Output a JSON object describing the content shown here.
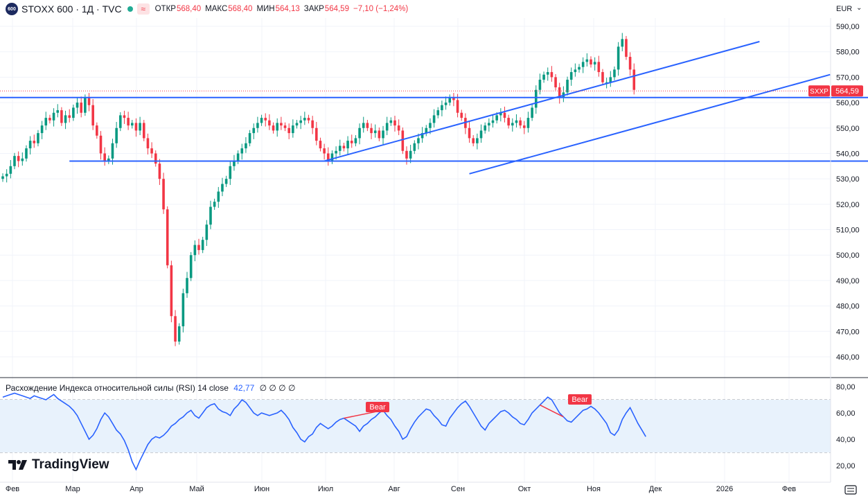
{
  "header": {
    "logo_text": "600",
    "symbol": "STOXX 600 · 1Д · TVC",
    "open_label": "ОТКР",
    "open_value": "568,40",
    "high_label": "МАКС",
    "high_value": "568,40",
    "low_label": "МИН",
    "low_value": "564,13",
    "close_label": "ЗАКР",
    "close_value": "564,59",
    "change_value": "−7,10 (−1,24%)",
    "status_icon": "live-dot-icon",
    "wave_icon": "wave-icon",
    "wave_glyph": "≈"
  },
  "currency": "EUR",
  "currency_arrow": "⌄",
  "price_axis": {
    "ticks": [
      "590,00",
      "580,00",
      "570,00",
      "560,00",
      "550,00",
      "540,00",
      "530,00",
      "520,00",
      "510,00",
      "500,00",
      "490,00",
      "480,00",
      "470,00",
      "460,00"
    ],
    "last_symbol": "SXXP",
    "last_price": "564,59"
  },
  "rsi": {
    "title": "Расхождение Индекса относительной силы (RSI)",
    "params": "14 close",
    "value": "42,77",
    "placeholders": "∅ ∅ ∅ ∅",
    "ticks": [
      "80,00",
      "60,00",
      "40,00",
      "20,00"
    ],
    "bear_labels": [
      "Bear",
      "Bear"
    ]
  },
  "time_axis": [
    "Фев",
    "Мар",
    "Апр",
    "Май",
    "Июн",
    "Июл",
    "Авг",
    "Сен",
    "Окт",
    "Ноя",
    "Дек",
    "2026",
    "Фев"
  ],
  "brand": "TradingView",
  "colors": {
    "up": "#089981",
    "down": "#f23645",
    "line": "#2962ff",
    "rsi_band": "#e8f2fc"
  },
  "chart_data": [
    {
      "type": "candlestick",
      "title": "STOXX 600 · 1Д · TVC",
      "ylabel": "EUR",
      "ylim": [
        455,
        593
      ],
      "ohlc_last": {
        "open": 568.4,
        "high": 568.4,
        "low": 564.13,
        "close": 564.59,
        "change": -7.1,
        "change_pct": -1.24
      },
      "closes": [
        531,
        532,
        535,
        539,
        537,
        538,
        542,
        545,
        544,
        548,
        551,
        554,
        553,
        556,
        557,
        552,
        555,
        554,
        558,
        560,
        556,
        562,
        559,
        551,
        547,
        540,
        537,
        538,
        544,
        550,
        555,
        554,
        551,
        552,
        549,
        552,
        546,
        542,
        540,
        536,
        530,
        518,
        496,
        476,
        466,
        472,
        485,
        491,
        500,
        504,
        502,
        506,
        512,
        519,
        521,
        525,
        528,
        530,
        535,
        537,
        540,
        542,
        544,
        548,
        550,
        552,
        554,
        553,
        551,
        549,
        552,
        551,
        550,
        548,
        551,
        552,
        553,
        554,
        553,
        550,
        545,
        542,
        540,
        537,
        540,
        541,
        543,
        542,
        545,
        544,
        546,
        550,
        552,
        550,
        548,
        549,
        546,
        549,
        552,
        553,
        551,
        549,
        541,
        538,
        541,
        544,
        546,
        548,
        550,
        552,
        555,
        557,
        559,
        560,
        562,
        561,
        556,
        554,
        550,
        546,
        544,
        546,
        549,
        551,
        552,
        553,
        555,
        556,
        554,
        551,
        552,
        553,
        551,
        550,
        554,
        558,
        565,
        569,
        571,
        572,
        570,
        566,
        562,
        564,
        569,
        572,
        573,
        574,
        576,
        577,
        575,
        576,
        572,
        568,
        568,
        570,
        573,
        582,
        585,
        578,
        573,
        565
      ],
      "support_lines": [
        {
          "name": "",
          "x_start_index": 0,
          "x_end_index": 230,
          "y": 562
        },
        {
          "name": "",
          "x_start_index": 17,
          "x_end_index": 232,
          "y": 537
        }
      ],
      "channel_upper": [
        {
          "i": 82,
          "y": 537
        },
        {
          "i": 193,
          "y": 584
        }
      ],
      "channel_lower": [
        {
          "i": 119,
          "y": 532
        },
        {
          "i": 211,
          "y": 571
        }
      ]
    },
    {
      "type": "line",
      "title": "RSI 14 close",
      "ylim": [
        15,
        82
      ],
      "bands": [
        30,
        70
      ],
      "last_value": 42.77,
      "values": [
        72,
        73,
        74,
        75,
        74,
        73,
        72,
        71,
        73,
        72,
        71,
        70,
        72,
        74,
        71,
        69,
        67,
        65,
        62,
        58,
        52,
        46,
        40,
        43,
        48,
        55,
        60,
        57,
        52,
        47,
        44,
        39,
        32,
        23,
        17,
        24,
        30,
        36,
        40,
        42,
        41,
        43,
        46,
        50,
        52,
        55,
        57,
        60,
        62,
        58,
        56,
        60,
        64,
        66,
        67,
        63,
        61,
        60,
        58,
        63,
        66,
        70,
        68,
        64,
        60,
        58,
        60,
        59,
        58,
        59,
        60,
        62,
        59,
        55,
        49,
        45,
        40,
        38,
        42,
        44,
        49,
        52,
        50,
        48,
        50,
        53,
        55,
        56,
        54,
        52,
        50,
        46,
        50,
        52,
        55,
        57,
        60,
        62,
        58,
        55,
        50,
        46,
        40,
        42,
        48,
        53,
        57,
        60,
        63,
        62,
        58,
        55,
        51,
        50,
        56,
        60,
        64,
        67,
        69,
        65,
        60,
        55,
        50,
        47,
        52,
        55,
        58,
        61,
        62,
        60,
        57,
        55,
        52,
        51,
        55,
        60,
        63,
        66,
        69,
        72,
        70,
        65,
        60,
        57,
        54,
        53,
        56,
        59,
        62,
        63,
        65,
        63,
        60,
        56,
        52,
        45,
        43,
        47,
        55,
        60,
        64,
        58,
        52,
        47,
        42
      ]
    }
  ]
}
